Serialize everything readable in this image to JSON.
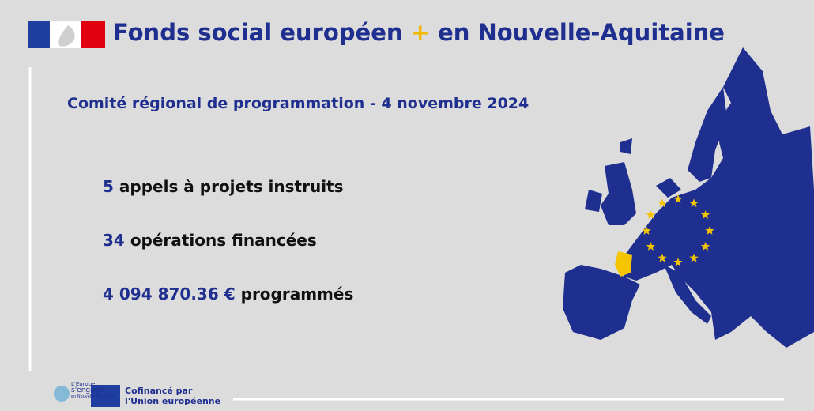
{
  "header": {
    "title_start": "Fonds social européen",
    "title_plus": "+",
    "title_end": "en Nouvelle-Aquitaine"
  },
  "subtitle": "Comité régional de programmation - 4 novembre 2024",
  "stats": [
    {
      "number": "5",
      "text": "appels à projets instruits"
    },
    {
      "number": "34",
      "text": "opérations financées"
    },
    {
      "number": "4 094 870.36 €",
      "text": "programmés"
    }
  ],
  "footer": {
    "europe_logo": [
      "L'Europe",
      "s'engage",
      "en Nouvelle-Aquitaine"
    ],
    "eu_logo": [
      "Cofinancé par",
      "l'Union européenne"
    ]
  }
}
